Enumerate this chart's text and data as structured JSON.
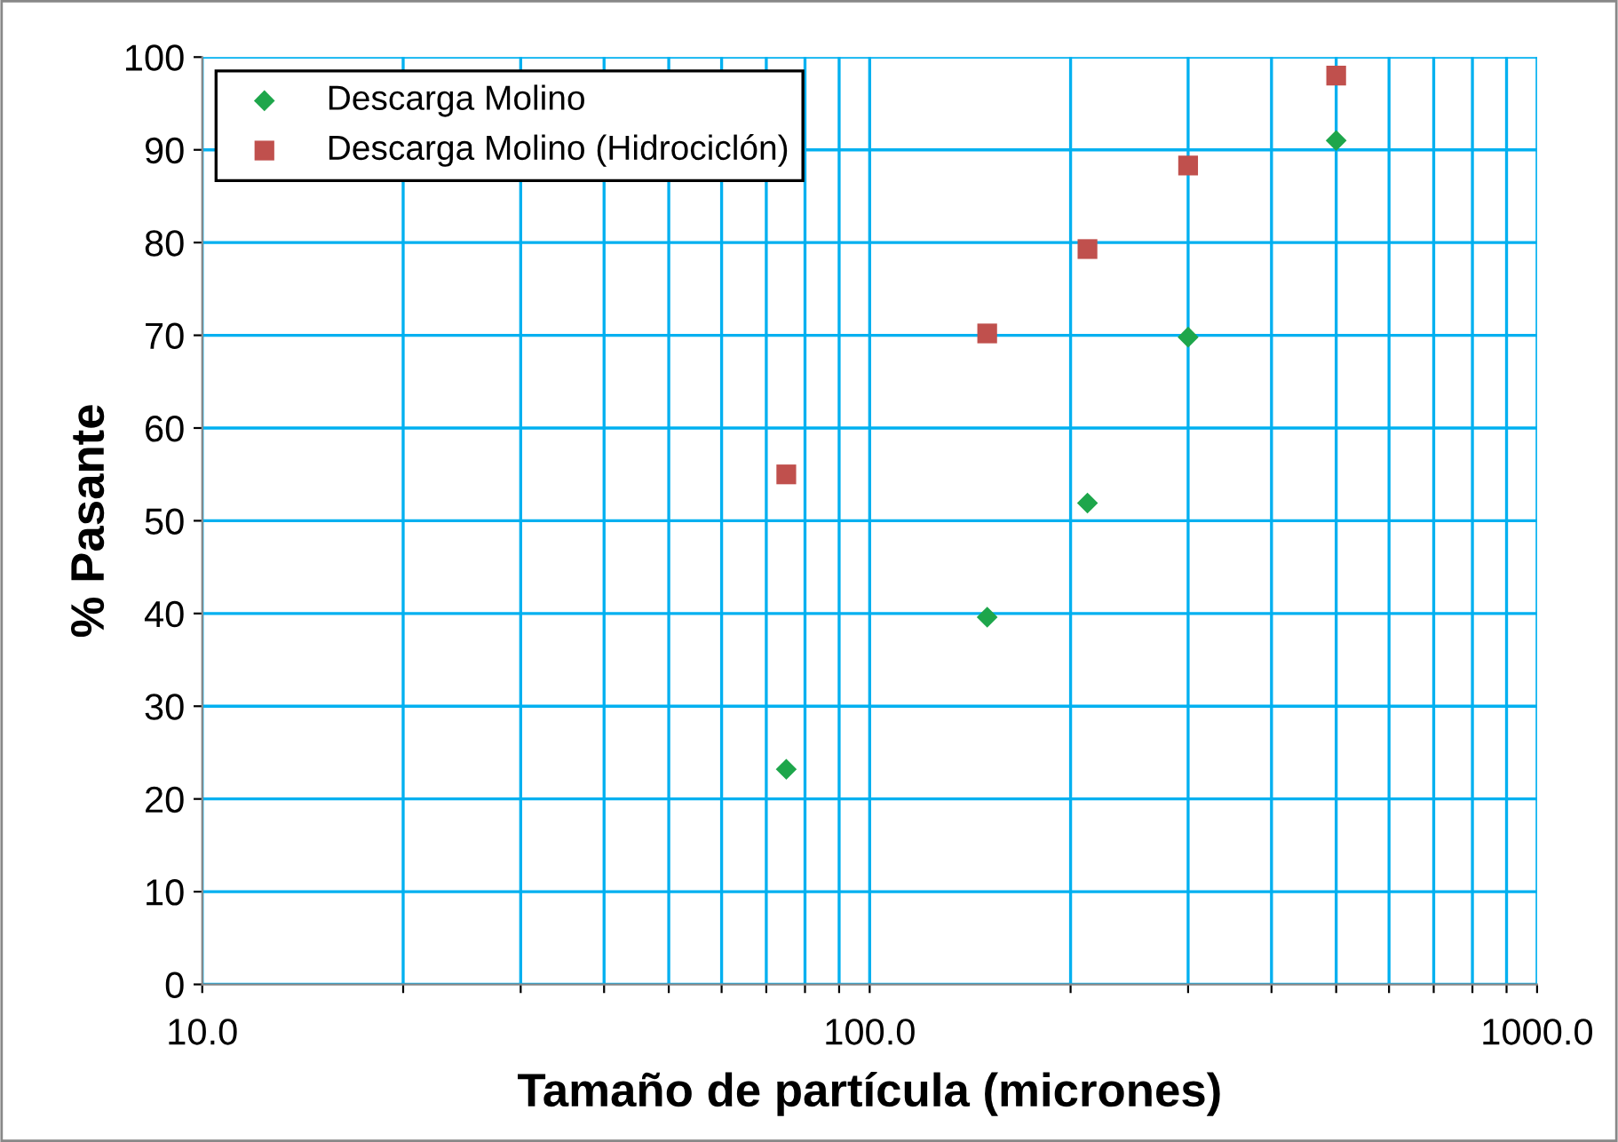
{
  "chart_data": {
    "type": "scatter",
    "xlabel": "Tamaño de partícula (micrones)",
    "ylabel": "% Pasante",
    "log": "x",
    "grid": true,
    "legend": "top left",
    "xlim": [
      10,
      1000
    ],
    "ylim": [
      0,
      100
    ],
    "xticks": [
      {
        "value": 10,
        "label": "10.0"
      },
      {
        "value": 20,
        "label": null
      },
      {
        "value": 30,
        "label": null
      },
      {
        "value": 40,
        "label": null
      },
      {
        "value": 50,
        "label": null
      },
      {
        "value": 60,
        "label": null
      },
      {
        "value": 70,
        "label": null
      },
      {
        "value": 80,
        "label": null
      },
      {
        "value": 90,
        "label": null
      },
      {
        "value": 100,
        "label": "100.0"
      },
      {
        "value": 200,
        "label": null
      },
      {
        "value": 300,
        "label": null
      },
      {
        "value": 400,
        "label": null
      },
      {
        "value": 500,
        "label": null
      },
      {
        "value": 600,
        "label": null
      },
      {
        "value": 700,
        "label": null
      },
      {
        "value": 800,
        "label": null
      },
      {
        "value": 900,
        "label": null
      },
      {
        "value": 1000,
        "label": "1000.0"
      }
    ],
    "yticks": [
      0,
      10,
      20,
      30,
      40,
      50,
      60,
      70,
      80,
      90,
      100
    ],
    "series": [
      {
        "name": "Descarga Molino",
        "color": "#1ea64b",
        "marker": "diamond",
        "x": [
          75,
          150,
          212,
          300,
          500
        ],
        "values": [
          23.2,
          39.6,
          51.9,
          69.8,
          91
        ]
      },
      {
        "name": "Descarga Molino (Hidrociclón)",
        "color": "#c0504d",
        "marker": "square",
        "x": [
          75,
          150,
          212,
          300,
          500
        ],
        "values": [
          55,
          70.2,
          79.3,
          88.3,
          98
        ]
      }
    ]
  }
}
